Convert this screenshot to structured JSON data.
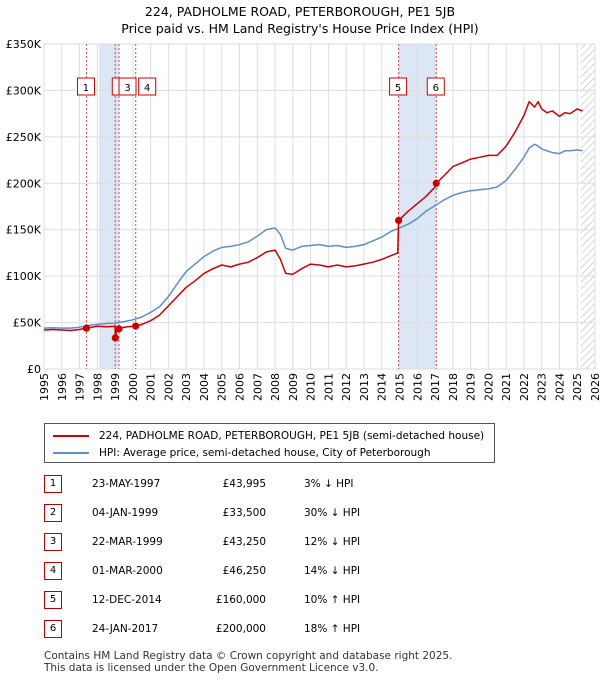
{
  "header": {
    "title": "224, PADHOLME ROAD, PETERBOROUGH, PE1 5JB",
    "subtitle": "Price paid vs. HM Land Registry's House Price Index (HPI)"
  },
  "colors": {
    "property": "#cc0000",
    "hpi": "#5b8fc9",
    "shade": "#dce6f5",
    "grid": "#dddddd",
    "vline": "#d05050"
  },
  "legend": {
    "property_label": "224, PADHOLME ROAD, PETERBOROUGH, PE1 5JB (semi-detached house)",
    "hpi_label": "HPI: Average price, semi-detached house, City of Peterborough"
  },
  "transactions": [
    {
      "num": "1",
      "date": "23-MAY-1997",
      "price": "£43,995",
      "hpi": "3% ↓ HPI",
      "x": 1997.39,
      "value": 43995
    },
    {
      "num": "2",
      "date": "04-JAN-1999",
      "price": "£33,500",
      "hpi": "30% ↓ HPI",
      "x": 1999.01,
      "value": 33500
    },
    {
      "num": "3",
      "date": "22-MAR-1999",
      "price": "£43,250",
      "hpi": "12% ↓ HPI",
      "x": 1999.22,
      "value": 43250
    },
    {
      "num": "4",
      "date": "01-MAR-2000",
      "price": "£46,250",
      "hpi": "14% ↓ HPI",
      "x": 2000.16,
      "value": 46250
    },
    {
      "num": "5",
      "date": "12-DEC-2014",
      "price": "£160,000",
      "hpi": "10% ↑ HPI",
      "x": 2014.95,
      "value": 160000
    },
    {
      "num": "6",
      "date": "24-JAN-2017",
      "price": "£200,000",
      "hpi": "18% ↑ HPI",
      "x": 2017.07,
      "value": 200000
    }
  ],
  "footer": {
    "line1": "Contains HM Land Registry data © Crown copyright and database right 2025.",
    "line2": "This data is licensed under the Open Government Licence v3.0."
  },
  "chart_data": {
    "type": "line",
    "title": "224, PADHOLME ROAD, PETERBOROUGH, PE1 5JB",
    "subtitle": "Price paid vs. HM Land Registry's House Price Index (HPI)",
    "xlim": [
      1995,
      2026
    ],
    "ylim": [
      0,
      350000
    ],
    "x_ticks": [
      1995,
      1996,
      1997,
      1998,
      1999,
      2000,
      2001,
      2002,
      2003,
      2004,
      2005,
      2006,
      2007,
      2008,
      2009,
      2010,
      2011,
      2012,
      2013,
      2014,
      2015,
      2016,
      2017,
      2018,
      2019,
      2020,
      2021,
      2022,
      2023,
      2024,
      2025,
      2026
    ],
    "y_ticks": [
      0,
      50000,
      100000,
      150000,
      200000,
      250000,
      300000,
      350000
    ],
    "y_tick_labels": [
      "£0",
      "£50K",
      "£100K",
      "£150K",
      "£200K",
      "£250K",
      "£300K",
      "£350K"
    ],
    "grid": true,
    "shaded_ranges": [
      [
        1998.1,
        1999.25
      ],
      [
        2014.95,
        2017.07
      ]
    ],
    "hatch_from": 2025.2,
    "series": [
      {
        "name": "224, PADHOLME ROAD, PETERBOROUGH, PE1 5JB (semi-detached house)",
        "color": "#cc0000",
        "x": [
          1995.0,
          1995.5,
          1996.0,
          1996.5,
          1997.0,
          1997.39,
          1998.0,
          1998.5,
          1999.0,
          1999.01,
          1999.1,
          1999.22,
          1999.5,
          2000.0,
          2000.16,
          2000.5,
          2001.0,
          2001.5,
          2002.0,
          2002.5,
          2003.0,
          2003.5,
          2004.0,
          2004.5,
          2005.0,
          2005.5,
          2006.0,
          2006.5,
          2007.0,
          2007.5,
          2008.0,
          2008.3,
          2008.6,
          2009.0,
          2009.5,
          2010.0,
          2010.5,
          2011.0,
          2011.5,
          2012.0,
          2012.5,
          2013.0,
          2013.5,
          2014.0,
          2014.9,
          2014.95,
          2015.5,
          2016.0,
          2016.5,
          2017.0,
          2017.07,
          2017.5,
          2018.0,
          2018.5,
          2019.0,
          2019.5,
          2020.0,
          2020.5,
          2021.0,
          2021.5,
          2022.0,
          2022.3,
          2022.6,
          2022.8,
          2023.0,
          2023.3,
          2023.6,
          2024.0,
          2024.3,
          2024.6,
          2025.0,
          2025.3
        ],
        "values": [
          42000,
          42500,
          42000,
          41500,
          42500,
          43995,
          46000,
          45500,
          46000,
          33500,
          43000,
          43250,
          45000,
          46000,
          46250,
          48000,
          52000,
          58000,
          68000,
          78000,
          88000,
          95000,
          103000,
          108000,
          112000,
          110000,
          113000,
          115000,
          120000,
          126000,
          128000,
          118000,
          103000,
          102000,
          108000,
          113000,
          112000,
          110000,
          112000,
          110000,
          111000,
          113000,
          115000,
          118000,
          125000,
          160000,
          170000,
          178000,
          186000,
          196000,
          200000,
          208000,
          218000,
          222000,
          226000,
          228000,
          230000,
          230000,
          240000,
          255000,
          273000,
          288000,
          282000,
          288000,
          280000,
          276000,
          278000,
          272000,
          276000,
          275000,
          280000,
          278000
        ]
      },
      {
        "name": "HPI: Average price, semi-detached house, City of Peterborough",
        "color": "#5b8fc9",
        "x": [
          1995.0,
          1995.5,
          1996.0,
          1996.5,
          1997.0,
          1997.5,
          1998.0,
          1998.5,
          1999.0,
          1999.5,
          2000.0,
          2000.5,
          2001.0,
          2001.5,
          2002.0,
          2002.5,
          2003.0,
          2003.5,
          2004.0,
          2004.5,
          2005.0,
          2005.5,
          2006.0,
          2006.5,
          2007.0,
          2007.5,
          2008.0,
          2008.3,
          2008.6,
          2009.0,
          2009.5,
          2010.0,
          2010.5,
          2011.0,
          2011.5,
          2012.0,
          2012.5,
          2013.0,
          2013.5,
          2014.0,
          2014.5,
          2015.0,
          2015.5,
          2016.0,
          2016.5,
          2017.0,
          2017.5,
          2018.0,
          2018.5,
          2019.0,
          2019.5,
          2020.0,
          2020.5,
          2021.0,
          2021.5,
          2022.0,
          2022.3,
          2022.6,
          2022.8,
          2023.0,
          2023.3,
          2023.6,
          2024.0,
          2024.3,
          2024.6,
          2025.0,
          2025.3
        ],
        "values": [
          44000,
          44500,
          44000,
          44000,
          45000,
          47000,
          48000,
          49000,
          49500,
          51000,
          53000,
          56000,
          61000,
          67000,
          78000,
          92000,
          105000,
          113000,
          121000,
          127000,
          131000,
          132000,
          134000,
          137000,
          143000,
          150000,
          152000,
          145000,
          130000,
          128000,
          132000,
          133000,
          134000,
          132000,
          133000,
          131000,
          132000,
          134000,
          138000,
          142000,
          148000,
          152000,
          156000,
          162000,
          170000,
          176000,
          182000,
          187000,
          190000,
          192000,
          193000,
          194000,
          196000,
          203000,
          215000,
          228000,
          238000,
          242000,
          240000,
          237000,
          235000,
          233000,
          232000,
          235000,
          235000,
          236000,
          235000
        ]
      }
    ],
    "markers": [
      {
        "label": "1",
        "x": 1997.39,
        "y": 43995
      },
      {
        "label": "2",
        "x": 1999.01,
        "y": 33500
      },
      {
        "label": "3",
        "x": 1999.22,
        "y": 43250
      },
      {
        "label": "4",
        "x": 2000.16,
        "y": 46250
      },
      {
        "label": "5",
        "x": 2014.95,
        "y": 160000
      },
      {
        "label": "6",
        "x": 2017.07,
        "y": 200000
      }
    ]
  }
}
